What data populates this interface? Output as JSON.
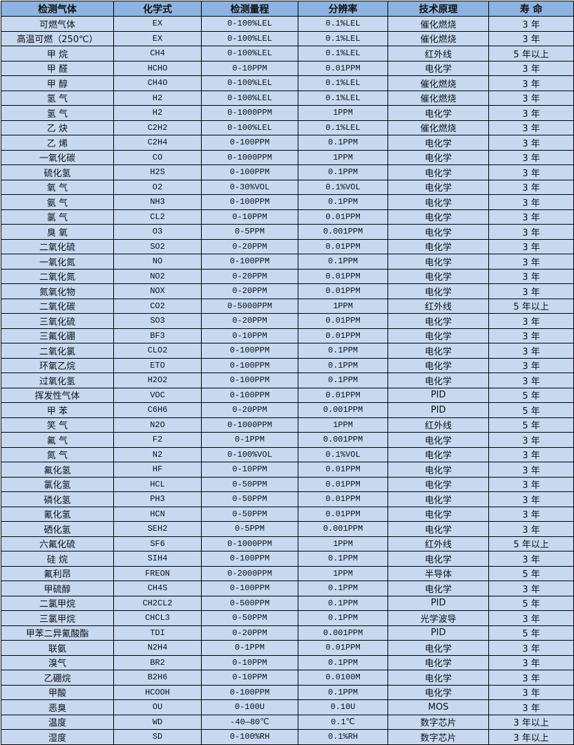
{
  "table": {
    "headers": [
      "检测气体",
      "化学式",
      "检测量程",
      "分辨率",
      "技术原理",
      "寿 命"
    ],
    "rows": [
      [
        "可燃气体",
        "EX",
        "0-100%LEL",
        "0.1%LEL",
        "催化燃烧",
        "3 年"
      ],
      [
        "高温可燃（250℃）",
        "EX",
        "0-100%LEL",
        "0.1%LEL",
        "催化燃烧",
        "3 年"
      ],
      [
        "甲 烷",
        "CH4",
        "0-100%LEL",
        "0.1%LEL",
        "红外线",
        "5 年以上"
      ],
      [
        "甲 醛",
        "HCHO",
        "0-10PPM",
        "0.01PPM",
        "电化学",
        "3 年"
      ],
      [
        "甲 醇",
        "CH4O",
        "0-100%LEL",
        "0.1%LEL",
        "催化燃烧",
        "3 年"
      ],
      [
        "氢 气",
        "H2",
        "0-100%LEL",
        "0.1%LEL",
        "催化燃烧",
        "3 年"
      ],
      [
        "氢 气",
        "H2",
        "0-1000PPM",
        "1PPM",
        "电化学",
        "3 年"
      ],
      [
        "乙 炔",
        "C2H2",
        "0-100%LEL",
        "0.1%LEL",
        "催化燃烧",
        "3 年"
      ],
      [
        "乙 烯",
        "C2H4",
        "0-100PPM",
        "0.1PPM",
        "电化学",
        "3 年"
      ],
      [
        "一氧化碳",
        "CO",
        "0-1000PPM",
        "1PPM",
        "电化学",
        "3 年"
      ],
      [
        "硫化氢",
        "H2S",
        "0-100PPM",
        "0.1PPM",
        "电化学",
        "3 年"
      ],
      [
        "氧 气",
        "O2",
        "0-30%VOL",
        "0.1%VOL",
        "电化学",
        "3 年"
      ],
      [
        "氨 气",
        "NH3",
        "0-100PPM",
        "0.1PPM",
        "电化学",
        "3 年"
      ],
      [
        "氯 气",
        "CL2",
        "0-10PPM",
        "0.01PPM",
        "电化学",
        "3 年"
      ],
      [
        "臭 氧",
        "O3",
        "0-5PPM",
        "0.001PPM",
        "电化学",
        "3 年"
      ],
      [
        "二氧化硫",
        "SO2",
        "0-20PPM",
        "0.01PPM",
        "电化学",
        "3 年"
      ],
      [
        "一氧化氮",
        "NO",
        "0-100PPM",
        "0.1PPM",
        "电化学",
        "3 年"
      ],
      [
        "二氧化氮",
        "NO2",
        "0-20PPM",
        "0.01PPM",
        "电化学",
        "3 年"
      ],
      [
        "氮氧化物",
        "NOX",
        "0-20PPM",
        "0.01PPM",
        "电化学",
        "3 年"
      ],
      [
        "二氧化碳",
        "CO2",
        "0-5000PPM",
        "1PPM",
        "红外线",
        "5 年以上"
      ],
      [
        "三氧化硫",
        "SO3",
        "0-20PPM",
        "0.01PPM",
        "电化学",
        "3 年"
      ],
      [
        "三氟化硼",
        "BF3",
        "0-10PPM",
        "0.01PPM",
        "电化学",
        "3 年"
      ],
      [
        "二氧化氯",
        "CLO2",
        "0-100PPM",
        "0.1PPM",
        "电化学",
        "3 年"
      ],
      [
        "环氧乙烷",
        "ETO",
        "0-100PPM",
        "0.1PPM",
        "电化学",
        "3 年"
      ],
      [
        "过氧化氢",
        "H2O2",
        "0-100PPM",
        "0.1PPM",
        "电化学",
        "3 年"
      ],
      [
        "挥发性气体",
        "VOC",
        "0-100PPM",
        "0.01PPM",
        "PID",
        "5 年"
      ],
      [
        "甲 苯",
        "C6H6",
        "0-20PPM",
        "0.001PPM",
        "PID",
        "5 年"
      ],
      [
        "笑 气",
        "N2O",
        "0-1000PPM",
        "1PPM",
        "红外线",
        "5 年"
      ],
      [
        "氟 气",
        "F2",
        "0-1PPM",
        "0.001PPM",
        "电化学",
        "3 年"
      ],
      [
        "氮 气",
        "N2",
        "0-100%VOL",
        "0.1%VOL",
        "电化学",
        "3 年"
      ],
      [
        "氟化氢",
        "HF",
        "0-10PPM",
        "0.01PPM",
        "电化学",
        "3 年"
      ],
      [
        "氯化氢",
        "HCL",
        "0-50PPM",
        "0.01PPM",
        "电化学",
        "3 年"
      ],
      [
        "磷化氢",
        "PH3",
        "0-50PPM",
        "0.01PPM",
        "电化学",
        "3 年"
      ],
      [
        "氰化氢",
        "HCN",
        "0-50PPM",
        "0.01PPM",
        "电化学",
        "3 年"
      ],
      [
        "硒化氢",
        "SEH2",
        "0-5PPM",
        "0.001PPM",
        "电化学",
        "3 年"
      ],
      [
        "六氟化硫",
        "SF6",
        "0-1000PPM",
        "1PPM",
        "红外线",
        "5 年以上"
      ],
      [
        "硅 烷",
        "SIH4",
        "0-100PPM",
        "0.1PPM",
        "电化学",
        "3 年"
      ],
      [
        "氟利昂",
        "FREON",
        "0-2000PPM",
        "1PPM",
        "半导体",
        "5 年"
      ],
      [
        "甲硫醇",
        "CH4S",
        "0-100PPM",
        "0.1PPM",
        "电化学",
        "3 年"
      ],
      [
        "二氯甲烷",
        "CH2CL2",
        "0-500PPM",
        "0.1PPM",
        "PID",
        "5 年"
      ],
      [
        "三氯甲烷",
        "CHCL3",
        "0-50PPM",
        "0.1PPM",
        "光学波导",
        "3 年"
      ],
      [
        "甲苯二异氰酸酯",
        "TDI",
        "0-20PPM",
        "0.001PPM",
        "PID",
        "5 年"
      ],
      [
        "联氨",
        "N2H4",
        "0-1PPM",
        "0.01PPM",
        "电化学",
        "3 年"
      ],
      [
        "溴气",
        "BR2",
        "0-10PPM",
        "0.1PPM",
        "电化学",
        "3 年"
      ],
      [
        "乙硼烷",
        "B2H6",
        "0-10PPM",
        "0.0100M",
        "电化学",
        "3 年"
      ],
      [
        "甲酸",
        "HCOOH",
        "0-100PPM",
        "0.1PPM",
        "电化学",
        "3 年"
      ],
      [
        "恶臭",
        "OU",
        "0-100U",
        "0.10U",
        "MOS",
        "3 年"
      ],
      [
        "温度",
        "WD",
        "-40—80℃",
        "0.1℃",
        "数字芯片",
        "3 年以上"
      ],
      [
        "湿度",
        "SD",
        "0-100%RH",
        "0.1%RH",
        "数字芯片",
        "3 年以上"
      ]
    ]
  },
  "colors": {
    "header_bg": "#8DB3E2",
    "cell_bg": "#C6D9F1",
    "border": "#000000"
  }
}
